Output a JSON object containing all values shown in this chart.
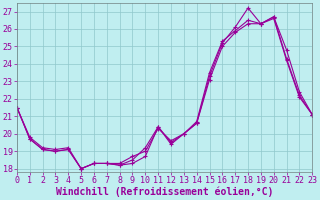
{
  "xlabel": "Windchill (Refroidissement éolien,°C)",
  "bg_color": "#c0eef0",
  "grid_color": "#90c8cc",
  "line_color": "#990099",
  "marker": "+",
  "xlim": [
    0,
    23
  ],
  "ylim": [
    17.8,
    27.5
  ],
  "yticks": [
    18,
    19,
    20,
    21,
    22,
    23,
    24,
    25,
    26,
    27
  ],
  "xticks": [
    0,
    1,
    2,
    3,
    4,
    5,
    6,
    7,
    8,
    9,
    10,
    11,
    12,
    13,
    14,
    15,
    16,
    17,
    18,
    19,
    20,
    21,
    22,
    23
  ],
  "line1_y": [
    21.5,
    19.8,
    19.2,
    19.1,
    19.2,
    18.0,
    18.3,
    18.3,
    18.2,
    18.3,
    18.7,
    20.4,
    19.4,
    20.0,
    20.6,
    23.3,
    25.2,
    26.1,
    27.2,
    26.3,
    26.6,
    24.2,
    22.1,
    21.1
  ],
  "line2_y": [
    21.5,
    19.7,
    19.1,
    19.0,
    19.1,
    18.0,
    18.3,
    18.3,
    18.2,
    18.5,
    19.2,
    20.4,
    19.5,
    20.0,
    20.6,
    23.1,
    25.0,
    25.8,
    26.3,
    26.3,
    26.7,
    24.3,
    22.2,
    21.1
  ],
  "line3_y": [
    21.5,
    19.7,
    19.1,
    19.0,
    19.1,
    18.0,
    18.3,
    18.3,
    18.3,
    18.7,
    19.0,
    20.3,
    19.6,
    20.0,
    20.7,
    23.5,
    25.3,
    25.9,
    26.5,
    26.3,
    26.7,
    24.8,
    22.4,
    21.1
  ],
  "font_size_xlabel": 7,
  "font_size_tick": 6,
  "linewidth": 0.8,
  "markersize": 3.5
}
